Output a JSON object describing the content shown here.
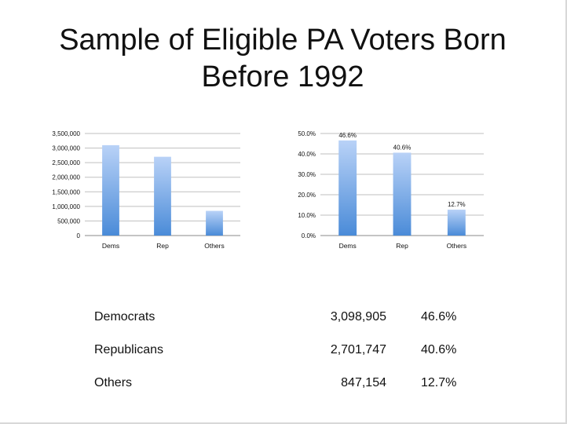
{
  "title_line1": "Sample of Eligible PA Voters Born",
  "title_line2": "Before 1992",
  "colors": {
    "bar_top": "#b9d2f7",
    "bar_bottom": "#4a8bd8",
    "grid": "#bfbfbf",
    "axis": "#888888"
  },
  "chart_data": [
    {
      "type": "bar",
      "categories": [
        "Dems",
        "Rep",
        "Others"
      ],
      "values": [
        3098905,
        2701747,
        847154
      ],
      "ylim": [
        0,
        3500000
      ],
      "yticks": [
        0,
        500000,
        1000000,
        1500000,
        2000000,
        2500000,
        3000000,
        3500000
      ],
      "ytick_labels": [
        "0",
        "500,000",
        "1,000,000",
        "1,500,000",
        "2,000,000",
        "2,500,000",
        "3,000,000",
        "3,500,000"
      ],
      "data_labels": [],
      "grid": true,
      "legend": "none",
      "title": "",
      "xlabel": "",
      "ylabel": ""
    },
    {
      "type": "bar",
      "categories": [
        "Dems",
        "Rep",
        "Others"
      ],
      "values": [
        46.6,
        40.6,
        12.7
      ],
      "ylim": [
        0,
        50
      ],
      "yticks": [
        0,
        10,
        20,
        30,
        40,
        50
      ],
      "ytick_labels": [
        "0.0%",
        "10.0%",
        "20.0%",
        "30.0%",
        "40.0%",
        "50.0%"
      ],
      "data_labels": [
        "46.6%",
        "40.6%",
        "12.7%"
      ],
      "grid": true,
      "legend": "none",
      "title": "",
      "xlabel": "",
      "ylabel": ""
    }
  ],
  "summary": [
    {
      "name": "Democrats",
      "count": "3,098,905",
      "pct": "46.6%"
    },
    {
      "name": "Republicans",
      "count": "2,701,747",
      "pct": "40.6%"
    },
    {
      "name": "Others",
      "count": "847,154",
      "pct": "12.7%"
    }
  ]
}
